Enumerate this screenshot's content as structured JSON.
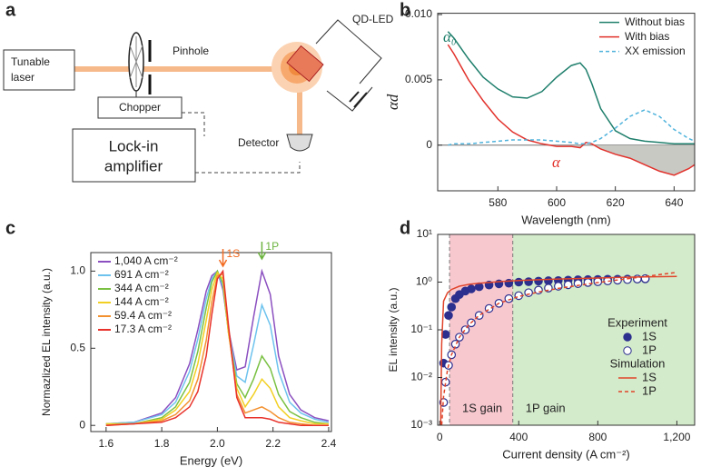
{
  "diagram": {
    "panel": "a",
    "tunable_laser": [
      "Tunable",
      "laser"
    ],
    "pinhole": "Pinhole",
    "chopper": "Chopper",
    "lock_in": [
      "Lock-in",
      "amplifier"
    ],
    "qd_led": "QD-LED",
    "detector": "Detector"
  },
  "chart_data": [
    {
      "type": "line",
      "panel": "b",
      "xlabel": "Wavelength (nm)",
      "ylabel": "αd",
      "x": [
        563,
        565,
        570,
        575,
        580,
        585,
        590,
        595,
        600,
        605,
        608,
        610,
        612,
        615,
        620,
        625,
        630,
        635,
        640,
        645,
        647
      ],
      "series": [
        {
          "name": "Without bias",
          "color": "#1f7f6c",
          "values": [
            0.0087,
            0.0082,
            0.0066,
            0.0052,
            0.0043,
            0.0037,
            0.0036,
            0.0041,
            0.0052,
            0.0061,
            0.0063,
            0.0058,
            0.0047,
            0.0028,
            0.0011,
            0.0005,
            0.0003,
            0.0002,
            0.0001,
            0.0001,
            0.0001
          ]
        },
        {
          "name": "With bias",
          "color": "#e2312b",
          "fill": "#c9c9c4",
          "values": [
            0.0077,
            0.007,
            0.005,
            0.0034,
            0.002,
            0.001,
            0.0004,
            0.0001,
            -0.0001,
            -0.0001,
            -0.0002,
            0.0002,
            0.0001,
            -0.0003,
            -0.0007,
            -0.001,
            -0.0015,
            -0.002,
            -0.0023,
            -0.0018,
            -0.0015
          ]
        },
        {
          "name": "XX emission",
          "color": "#4fb3dc",
          "dash": true,
          "values": [
            0.0,
            0.0001,
            0.0001,
            0.0002,
            0.0003,
            0.0004,
            0.0004,
            0.0004,
            0.0003,
            0.0002,
            0.0001,
            0.0001,
            0.0002,
            0.0005,
            0.0013,
            0.0022,
            0.0027,
            0.0022,
            0.0012,
            0.0005,
            0.0003
          ]
        }
      ],
      "xlim": [
        559.5,
        647
      ],
      "ylim": [
        -0.0035,
        0.0101
      ],
      "xticks": [
        580,
        600,
        620,
        640
      ],
      "yticks": [
        0,
        0.005,
        {
          "value": 0.01,
          "label": "0.010"
        }
      ],
      "zero_line": true,
      "legend": "top-right",
      "annotations": [
        {
          "text": "α₀",
          "color": "#1f7f6c"
        },
        {
          "text": "α",
          "color": "#e2312b"
        }
      ]
    },
    {
      "type": "line",
      "panel": "c",
      "xlabel": "Energy (eV)",
      "ylabel": "Normazlized EL intensity (a.u.)",
      "x": [
        1.6,
        1.7,
        1.8,
        1.85,
        1.9,
        1.93,
        1.96,
        1.98,
        2.0,
        2.02,
        2.04,
        2.07,
        2.1,
        2.13,
        2.16,
        2.19,
        2.22,
        2.26,
        2.3,
        2.35,
        2.4
      ],
      "series": [
        {
          "name": "1,040 A cm⁻²",
          "color": "#8b4fc0",
          "values": [
            0.01,
            0.02,
            0.08,
            0.18,
            0.4,
            0.62,
            0.87,
            0.97,
            1.0,
            0.88,
            0.62,
            0.36,
            0.38,
            0.7,
            1.0,
            0.85,
            0.45,
            0.2,
            0.1,
            0.05,
            0.03
          ]
        },
        {
          "name": "691 A cm⁻²",
          "color": "#6ec3ee",
          "values": [
            0.01,
            0.02,
            0.07,
            0.15,
            0.35,
            0.56,
            0.82,
            0.95,
            1.0,
            0.9,
            0.62,
            0.32,
            0.28,
            0.52,
            0.78,
            0.65,
            0.35,
            0.15,
            0.08,
            0.04,
            0.02
          ]
        },
        {
          "name": "344 A cm⁻²",
          "color": "#7ac143",
          "values": [
            0.01,
            0.01,
            0.05,
            0.12,
            0.28,
            0.48,
            0.76,
            0.93,
            1.0,
            0.92,
            0.6,
            0.27,
            0.18,
            0.3,
            0.45,
            0.37,
            0.2,
            0.09,
            0.05,
            0.02,
            0.01
          ]
        },
        {
          "name": "144 A cm⁻²",
          "color": "#f2d023",
          "values": [
            0.01,
            0.01,
            0.04,
            0.1,
            0.22,
            0.4,
            0.68,
            0.88,
            0.99,
            0.95,
            0.6,
            0.24,
            0.12,
            0.2,
            0.3,
            0.24,
            0.12,
            0.05,
            0.03,
            0.01,
            0.01
          ]
        },
        {
          "name": "59.4 A cm⁻²",
          "color": "#f39130",
          "values": [
            0.0,
            0.01,
            0.03,
            0.07,
            0.16,
            0.3,
            0.55,
            0.8,
            0.97,
            0.98,
            0.62,
            0.2,
            0.08,
            0.1,
            0.12,
            0.09,
            0.05,
            0.02,
            0.01,
            0.0,
            0.0
          ]
        },
        {
          "name": "17.3 A cm⁻²",
          "color": "#e8312a",
          "values": [
            0.0,
            0.01,
            0.02,
            0.05,
            0.12,
            0.22,
            0.45,
            0.72,
            0.95,
            1.0,
            0.65,
            0.18,
            0.05,
            0.05,
            0.05,
            0.04,
            0.02,
            0.01,
            0.0,
            0.0,
            0.0
          ]
        }
      ],
      "xlim": [
        1.545,
        2.41
      ],
      "ylim": [
        -0.04,
        1.12
      ],
      "xticks": [
        1.6,
        1.8,
        {
          "value": 2,
          "label": "2.0"
        },
        2.2,
        2.4
      ],
      "yticks": [
        0,
        0.5,
        {
          "value": 1,
          "label": "1.0"
        }
      ],
      "legend": "top-left",
      "annotations": [
        {
          "text": "1S",
          "color": "#f26b21"
        },
        {
          "text": "1P",
          "color": "#6cb33f"
        }
      ]
    },
    {
      "type": "line",
      "panel": "d",
      "xlabel": "Current density (A cm⁻²)",
      "ylabel": "EL intensity (a.u.)",
      "ylog": true,
      "series": [
        {
          "name": "1S",
          "color": "#2d2f8e",
          "mode": "markers",
          "marker": "filled",
          "x": [
            20,
            30,
            45,
            60,
            80,
            100,
            130,
            160,
            200,
            250,
            300,
            350,
            400,
            450,
            500,
            550,
            600,
            650,
            700,
            750,
            800,
            850,
            900,
            950,
            1000,
            1040
          ],
          "values": [
            0.02,
            0.08,
            0.2,
            0.3,
            0.45,
            0.55,
            0.65,
            0.72,
            0.8,
            0.87,
            0.92,
            0.95,
            1.0,
            1.02,
            1.05,
            1.07,
            1.08,
            1.1,
            1.12,
            1.13,
            1.14,
            1.15,
            1.15,
            1.16,
            1.16,
            1.17
          ]
        },
        {
          "name": "1P",
          "color": "#2d2f8e",
          "mode": "markers",
          "marker": "open",
          "x": [
            20,
            30,
            45,
            60,
            80,
            100,
            130,
            160,
            200,
            250,
            300,
            350,
            400,
            450,
            500,
            550,
            600,
            650,
            700,
            750,
            800,
            850,
            900,
            950,
            1000,
            1040
          ],
          "values": [
            0.003,
            0.008,
            0.018,
            0.03,
            0.05,
            0.07,
            0.1,
            0.14,
            0.2,
            0.28,
            0.36,
            0.45,
            0.52,
            0.6,
            0.68,
            0.75,
            0.82,
            0.88,
            0.93,
            0.98,
            1.02,
            1.06,
            1.1,
            1.13,
            1.16,
            1.18
          ]
        },
        {
          "name": "1S",
          "color": "#e0442b",
          "mode": "line",
          "x": [
            5,
            10,
            20,
            40,
            60,
            100,
            150,
            200,
            300,
            400,
            500,
            600,
            800,
            1000,
            1200
          ],
          "values": [
            0.001,
            0.05,
            0.4,
            0.6,
            0.7,
            0.82,
            0.9,
            0.95,
            1.02,
            1.08,
            1.12,
            1.16,
            1.22,
            1.28,
            1.32
          ]
        },
        {
          "name": "1P",
          "color": "#e0442b",
          "mode": "line",
          "dash": true,
          "x": [
            5,
            10,
            20,
            40,
            60,
            100,
            150,
            200,
            300,
            400,
            500,
            600,
            800,
            1000,
            1200
          ],
          "values": [
            0.0003,
            0.001,
            0.004,
            0.015,
            0.03,
            0.07,
            0.13,
            0.2,
            0.36,
            0.5,
            0.62,
            0.74,
            0.98,
            1.25,
            1.6
          ]
        }
      ],
      "xlim": [
        -10,
        1290
      ],
      "ylim": [
        0.001,
        10
      ],
      "xticks": [
        0,
        400,
        800,
        {
          "value": 1200,
          "label": "1,200"
        }
      ],
      "yticks": [
        {
          "value": 0.001,
          "label": "10⁻³"
        },
        {
          "value": 0.01,
          "label": "10⁻²"
        },
        {
          "value": 0.1,
          "label": "10⁻¹"
        },
        {
          "value": 1,
          "label": "10⁰"
        },
        {
          "value": 10,
          "label": "10¹"
        }
      ],
      "regions": [
        {
          "label": "1S gain",
          "range": [
            50,
            370
          ],
          "color": "#f8c8cf"
        },
        {
          "label": "1P gain",
          "range": [
            370,
            1290
          ],
          "color": "#d4ebcb"
        }
      ],
      "legend": "bottom-right",
      "legend_groups": [
        "Experiment",
        "Simulation"
      ]
    }
  ]
}
